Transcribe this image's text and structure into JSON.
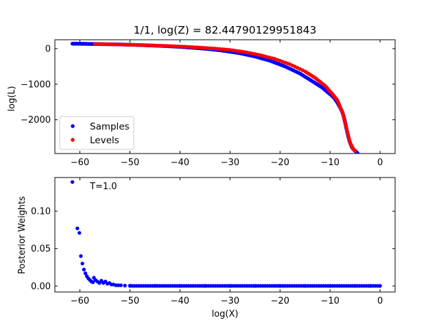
{
  "chart_data": [
    {
      "type": "scatter",
      "title": "1/1, log(Z) = 82.44790129951843",
      "xlabel": "",
      "ylabel": "log(L)",
      "xlim": [
        -65,
        3
      ],
      "ylim": [
        -2950,
        250
      ],
      "xticks": [
        -60,
        -50,
        -40,
        -30,
        -20,
        -10,
        0
      ],
      "xtick_labels": [
        "−60",
        "−50",
        "−40",
        "−30",
        "−20",
        "−10",
        "0"
      ],
      "yticks": [
        0,
        -1000,
        -2000
      ],
      "ytick_labels": [
        "0",
        "−1000",
        "−2000"
      ],
      "legend": {
        "placement": "lower-left",
        "entries": [
          {
            "label": "Samples",
            "color": "#0000ff"
          },
          {
            "label": "Levels",
            "color": "#ff0000"
          }
        ]
      },
      "series": [
        {
          "name": "Samples",
          "color": "#0000ff",
          "x": [
            -61.5,
            -60.5,
            -59,
            -57,
            -55,
            -52,
            -49,
            -46,
            -43,
            -40,
            -37,
            -34,
            -31,
            -28,
            -25,
            -22,
            -19,
            -16,
            -13.5,
            -11.5,
            -10.5,
            -9.8,
            -9.2,
            -8.6,
            -8.0,
            -7.5,
            -7.1,
            -6.8,
            -6.4,
            -6.0,
            -5.6,
            -5.2,
            -4.8,
            -4.5
          ],
          "y": [
            140,
            138,
            135,
            130,
            125,
            118,
            105,
            90,
            72,
            50,
            20,
            -15,
            -65,
            -130,
            -220,
            -340,
            -500,
            -700,
            -920,
            -1100,
            -1220,
            -1300,
            -1380,
            -1500,
            -1650,
            -1800,
            -2000,
            -2200,
            -2450,
            -2650,
            -2780,
            -2850,
            -2900,
            -2940
          ]
        },
        {
          "name": "Levels",
          "color": "#ff0000",
          "x": [
            -57,
            -54,
            -51,
            -48,
            -45,
            -42,
            -39,
            -36,
            -33,
            -30,
            -27,
            -24,
            -21,
            -18,
            -15,
            -13,
            -11,
            -9.5,
            -8.5,
            -7.5,
            -6.8,
            -6.0,
            -5.4,
            -5.0
          ],
          "y": [
            130,
            123,
            114,
            103,
            90,
            74,
            55,
            32,
            4,
            -35,
            -95,
            -180,
            -290,
            -440,
            -640,
            -820,
            -1040,
            -1280,
            -1460,
            -1800,
            -2200,
            -2650,
            -2810,
            -2880
          ]
        }
      ]
    },
    {
      "type": "scatter",
      "title": "",
      "xlabel": "log(X)",
      "ylabel": "Posterior Weights",
      "xlim": [
        -65,
        3
      ],
      "ylim": [
        -0.008,
        0.145
      ],
      "xticks": [
        -60,
        -50,
        -40,
        -30,
        -20,
        -10,
        0
      ],
      "xtick_labels": [
        "−60",
        "−50",
        "−40",
        "−30",
        "−20",
        "−10",
        "0"
      ],
      "yticks": [
        0.0,
        0.05,
        0.1
      ],
      "ytick_labels": [
        "0.00",
        "0.05",
        "0.10"
      ],
      "annotation": "T=1.0",
      "series": [
        {
          "color": "#0000ff",
          "x": [
            -61.5,
            -60.5,
            -60.1,
            -59.8,
            -59.5,
            -59.2,
            -58.9,
            -58.6,
            -58.3,
            -58.0,
            -57.7,
            -57.4,
            -57.2,
            -56.9,
            -56.5,
            -56.1,
            -55.7,
            -55.3,
            -54.9,
            -54.5,
            -54.1,
            -53.7,
            -53.3,
            -52.8,
            -52.3,
            -51.8,
            -51,
            -50,
            -45,
            -40,
            -35,
            -30,
            -25,
            -20,
            -15,
            -10,
            -5,
            -2,
            0
          ],
          "y": [
            0.139,
            0.077,
            0.071,
            0.04,
            0.03,
            0.022,
            0.017,
            0.013,
            0.01,
            0.008,
            0.006,
            0.005,
            0.011,
            0.008,
            0.006,
            0.004,
            0.007,
            0.004,
            0.006,
            0.003,
            0.004,
            0.002,
            0.002,
            0.001,
            0.001,
            0.001,
            0.0005,
            0.0004,
            0.0003,
            0.0002,
            0.0002,
            0.0002,
            0.0002,
            0.0002,
            0.0002,
            0.0002,
            0.0002,
            0.0002,
            0.0002
          ]
        }
      ]
    }
  ]
}
